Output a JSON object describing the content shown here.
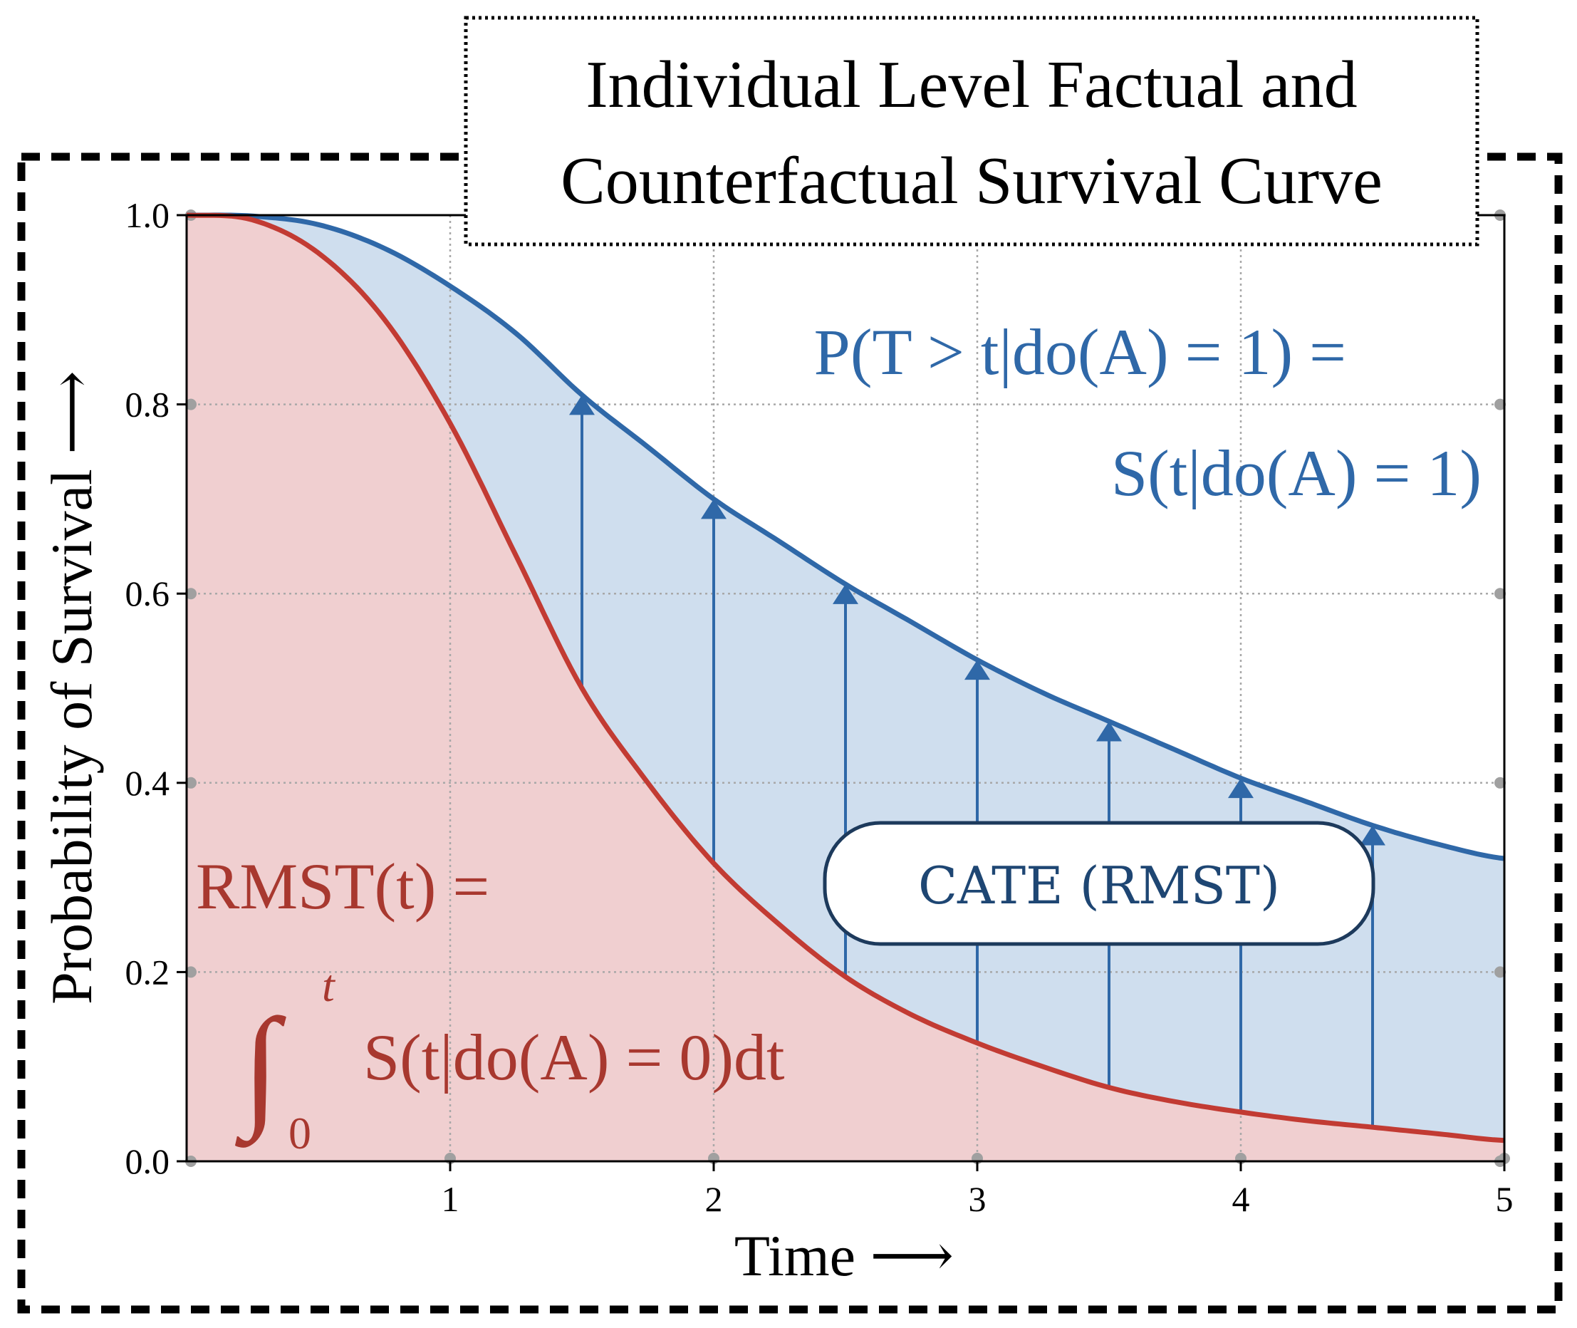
{
  "title": {
    "line1": "Individual Level Factual and",
    "line2": "Counterfactual Survival Curve"
  },
  "chart_data": {
    "type": "line",
    "x": [
      0,
      0.25,
      0.5,
      0.75,
      1.0,
      1.25,
      1.5,
      1.75,
      2.0,
      2.25,
      2.5,
      2.75,
      3.0,
      3.25,
      3.5,
      3.75,
      4.0,
      4.25,
      4.5,
      4.75,
      5.0
    ],
    "series": [
      {
        "key": "treated",
        "color": "#2f68a8",
        "fill": "#cfdeee",
        "values": [
          1.0,
          0.999,
          0.99,
          0.965,
          0.925,
          0.875,
          0.81,
          0.755,
          0.7,
          0.655,
          0.61,
          0.57,
          0.53,
          0.495,
          0.465,
          0.435,
          0.405,
          0.38,
          0.355,
          0.335,
          0.32
        ]
      },
      {
        "key": "control",
        "color": "#c23b33",
        "fill": "#f0cfd0",
        "values": [
          1.0,
          0.995,
          0.96,
          0.89,
          0.78,
          0.64,
          0.5,
          0.4,
          0.315,
          0.25,
          0.195,
          0.155,
          0.125,
          0.1,
          0.078,
          0.063,
          0.052,
          0.043,
          0.036,
          0.029,
          0.022
        ]
      }
    ],
    "arrows_x": [
      1.5,
      2.0,
      2.5,
      3.0,
      3.5,
      4.0,
      4.5
    ],
    "xlabel": "Time ⟶",
    "ylabel": "Probability of Survival ⟶",
    "xticks": [
      "1",
      "2",
      "3",
      "4",
      "5"
    ],
    "yticks": [
      "0.0",
      "0.2",
      "0.4",
      "0.6",
      "0.8",
      "1.0"
    ],
    "xlim": [
      0,
      5
    ],
    "ylim": [
      0,
      1
    ],
    "grid": true
  },
  "annotations": {
    "treated_eq_line1": "P(T > t|do(A) = 1) =",
    "treated_eq_line2": "S(t|do(A) = 1)",
    "rmst_line1": "RMST(t) =",
    "rmst_integrand": "S(t|do(A) = 0)dt",
    "rmst_integral_sign": "∫",
    "rmst_upper": "t",
    "rmst_lower": "0",
    "cate_label": "CATE (RMST)"
  }
}
